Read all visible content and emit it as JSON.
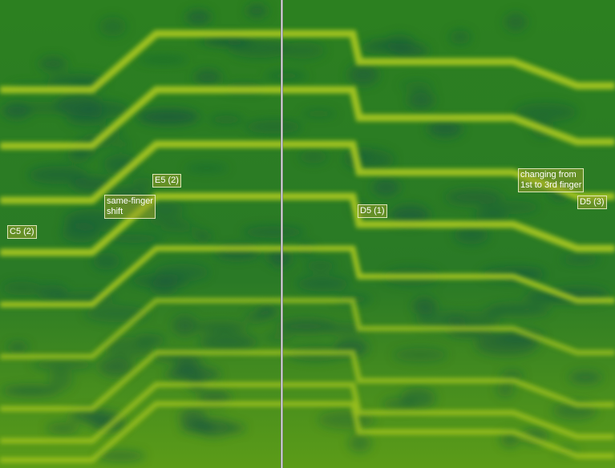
{
  "colors": {
    "background": "#2b7d22",
    "dark": "#1b5a3c",
    "band": "#b4cf1c",
    "divider": "#e8ecef"
  },
  "annotations": {
    "c5_2": "C5 (2)",
    "same_finger_1": "same-finger",
    "same_finger_2": "shift",
    "e5_2": "E5 (2)",
    "d5_1": "D5 (1)",
    "changing_1": "changing from",
    "changing_2": "1st to 3rd finger",
    "d5_3": "D5 (3)"
  }
}
